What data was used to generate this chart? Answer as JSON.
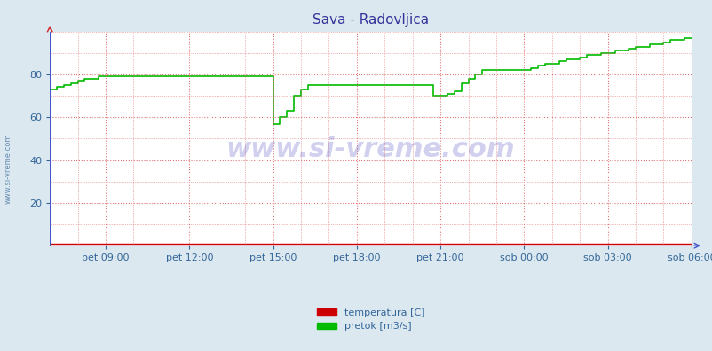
{
  "title": "Sava - Radovljica",
  "title_color": "#333399",
  "bg_color": "#dce8f0",
  "plot_bg_color": "#ffffff",
  "xlim": [
    0,
    276
  ],
  "ylim": [
    0,
    100
  ],
  "yticks": [
    20,
    40,
    60,
    80
  ],
  "xtick_labels": [
    "pet 09:00",
    "pet 12:00",
    "pet 15:00",
    "pet 18:00",
    "pet 21:00",
    "sob 00:00",
    "sob 03:00",
    "sob 06:00"
  ],
  "xtick_positions": [
    24,
    60,
    96,
    132,
    168,
    204,
    240,
    276
  ],
  "grid_color": "#dd6666",
  "grid_linestyle": ":",
  "watermark_text": "www.si-vreme.com",
  "watermark_color": "#0000aa",
  "watermark_alpha": 0.18,
  "sidebar_text": "www.si-vreme.com",
  "legend_labels": [
    "temperatura [C]",
    "pretok [m3/s]"
  ],
  "legend_colors": [
    "#cc0000",
    "#00bb00"
  ],
  "temp_color": "#cc0000",
  "flow_color": "#00bb00",
  "axis_color": "#4455cc",
  "tick_color": "#336699",
  "flow_data_x": [
    0,
    3,
    6,
    9,
    12,
    15,
    18,
    21,
    24,
    27,
    30,
    33,
    36,
    39,
    42,
    45,
    48,
    51,
    54,
    57,
    60,
    63,
    66,
    69,
    72,
    75,
    78,
    81,
    84,
    87,
    90,
    93,
    96,
    99,
    102,
    105,
    108,
    111,
    114,
    117,
    120,
    123,
    126,
    129,
    132,
    135,
    138,
    141,
    144,
    147,
    150,
    153,
    156,
    159,
    162,
    165,
    168,
    171,
    174,
    177,
    180,
    183,
    186,
    189,
    192,
    195,
    198,
    201,
    204,
    207,
    210,
    213,
    216,
    219,
    222,
    225,
    228,
    231,
    234,
    237,
    240,
    243,
    246,
    249,
    252,
    255,
    258,
    261,
    264,
    267,
    270,
    273,
    276
  ],
  "flow_data_y": [
    73,
    74,
    75,
    76,
    77,
    78,
    78,
    79,
    79,
    79,
    79,
    79,
    79,
    79,
    79,
    79,
    79,
    79,
    79,
    79,
    79,
    79,
    79,
    79,
    79,
    79,
    79,
    79,
    79,
    79,
    79,
    79,
    57,
    60,
    63,
    70,
    73,
    75,
    75,
    75,
    75,
    75,
    75,
    75,
    75,
    75,
    75,
    75,
    75,
    75,
    75,
    75,
    75,
    75,
    75,
    70,
    70,
    71,
    72,
    76,
    78,
    80,
    82,
    82,
    82,
    82,
    82,
    82,
    82,
    83,
    84,
    85,
    85,
    86,
    87,
    87,
    88,
    89,
    89,
    90,
    90,
    91,
    91,
    92,
    93,
    93,
    94,
    94,
    95,
    96,
    96,
    97,
    97
  ],
  "temp_data_x": [
    0,
    276
  ],
  "temp_data_y": [
    1,
    1
  ]
}
